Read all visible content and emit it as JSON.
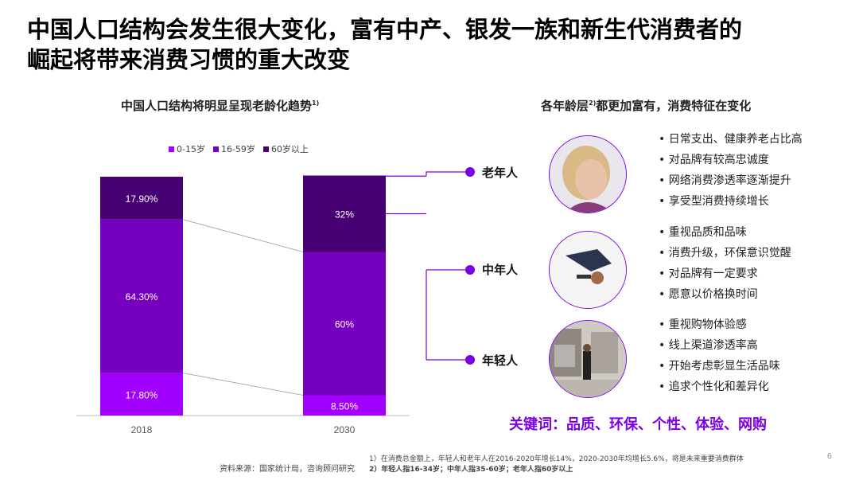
{
  "title_line1": "中国人口结构会发生很大变化，富有中产、银发一族和新生代消费者的",
  "title_line2": "崛起将带来消费习惯的重大改变",
  "left_heading": "中国人口结构将明显呈现老龄化趋势",
  "left_heading_note": "1)",
  "right_heading_pre": "各年龄层",
  "right_heading_sup": "2)",
  "right_heading_post": "都更加富有，消费特征在变化",
  "colors": {
    "young": "#a100ff",
    "middle": "#7500c0",
    "old": "#460073",
    "accent": "#7a00e6"
  },
  "chart_data": {
    "type": "bar",
    "stacked": true,
    "categories": [
      "2018",
      "2030"
    ],
    "series": [
      {
        "name": "0-15岁",
        "values": [
          17.8,
          8.5
        ],
        "labels": [
          "17.80%",
          "8.50%"
        ]
      },
      {
        "name": "16-59岁",
        "values": [
          64.3,
          60
        ],
        "labels": [
          "64.30%",
          "60%"
        ]
      },
      {
        "name": "60岁以上",
        "values": [
          17.9,
          32
        ],
        "labels": [
          "17.90%",
          "32%"
        ]
      }
    ],
    "ylim": [
      0,
      100
    ],
    "legend_position": "top",
    "grid": false
  },
  "groups": [
    {
      "label": "老年人",
      "photo_icon": "elderly-woman-photo",
      "bullets": [
        "日常支出、健康养老占比高",
        "对品牌有较高忠诚度",
        "网络消费渗透率逐渐提升",
        "享受型消费持续增长"
      ]
    },
    {
      "label": "中年人",
      "photo_icon": "businessman-photo",
      "bullets": [
        "重视品质和品味",
        "消费升级，环保意识觉醒",
        "对品牌有一定要求",
        "愿意以价格换时间"
      ]
    },
    {
      "label": "年轻人",
      "photo_icon": "shopping-street-photo",
      "bullets": [
        "重视购物体验感",
        "线上渠道渗透率高",
        "开始考虑彰显生活品味",
        "追求个性化和差异化"
      ]
    }
  ],
  "keywords": "关键词：品质、环保、个性、体验、网购",
  "source": "资料来源：国家统计局，咨询顾问研究",
  "notes": [
    "1）在消费总金额上，年轻人和老年人在2016-2020年增长14%，2020-2030年均增长5.6%，将是未来重要消费群体",
    "2）年轻人指16-34岁；中年人指35-60岁；老年人指60岁以上"
  ],
  "page_number": "6"
}
